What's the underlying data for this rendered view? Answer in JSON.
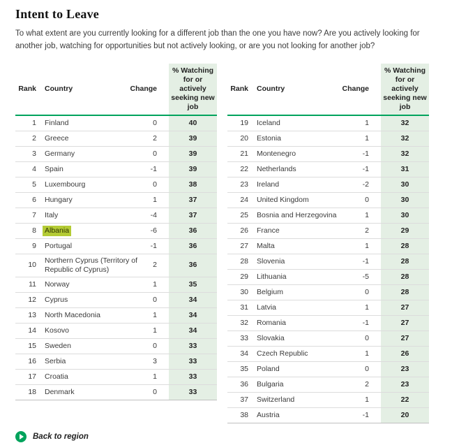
{
  "title": "Intent to Leave",
  "description": "To what extent are you currently looking for a different job than the one you have now? Are you actively looking for another job, watching for opportunities but not actively looking, or are you not looking for another job?",
  "columns": {
    "rank": "Rank",
    "country": "Country",
    "change": "Change",
    "pct": "% Watching for or actively seeking new job"
  },
  "colors": {
    "accent_green": "#00a35c",
    "pct_column_bg": "#e4efe4",
    "highlight": "#b4cb35"
  },
  "highlighted_country": "Albania",
  "chart_data": [
    {
      "type": "table",
      "columns": [
        "Rank",
        "Country",
        "Change",
        "% Watching for or actively seeking new job"
      ],
      "rows": [
        {
          "rank": "1",
          "country": "Finland",
          "change": "0",
          "pct": "40"
        },
        {
          "rank": "2",
          "country": "Greece",
          "change": "2",
          "pct": "39"
        },
        {
          "rank": "3",
          "country": "Germany",
          "change": "0",
          "pct": "39"
        },
        {
          "rank": "4",
          "country": "Spain",
          "change": "-1",
          "pct": "39"
        },
        {
          "rank": "5",
          "country": "Luxembourg",
          "change": "0",
          "pct": "38"
        },
        {
          "rank": "6",
          "country": "Hungary",
          "change": "1",
          "pct": "37"
        },
        {
          "rank": "7",
          "country": "Italy",
          "change": "-4",
          "pct": "37"
        },
        {
          "rank": "8",
          "country": "Albania",
          "change": "-6",
          "pct": "36",
          "highlight": true
        },
        {
          "rank": "9",
          "country": "Portugal",
          "change": "-1",
          "pct": "36"
        },
        {
          "rank": "10",
          "country": "Northern Cyprus (Territory of Republic of Cyprus)",
          "change": "2",
          "pct": "36"
        },
        {
          "rank": "11",
          "country": "Norway",
          "change": "1",
          "pct": "35"
        },
        {
          "rank": "12",
          "country": "Cyprus",
          "change": "0",
          "pct": "34"
        },
        {
          "rank": "13",
          "country": "North Macedonia",
          "change": "1",
          "pct": "34"
        },
        {
          "rank": "14",
          "country": "Kosovo",
          "change": "1",
          "pct": "34"
        },
        {
          "rank": "15",
          "country": "Sweden",
          "change": "0",
          "pct": "33"
        },
        {
          "rank": "16",
          "country": "Serbia",
          "change": "3",
          "pct": "33"
        },
        {
          "rank": "17",
          "country": "Croatia",
          "change": "1",
          "pct": "33"
        },
        {
          "rank": "18",
          "country": "Denmark",
          "change": "0",
          "pct": "33"
        }
      ]
    },
    {
      "type": "table",
      "columns": [
        "Rank",
        "Country",
        "Change",
        "% Watching for or actively seeking new job"
      ],
      "rows": [
        {
          "rank": "19",
          "country": "Iceland",
          "change": "1",
          "pct": "32"
        },
        {
          "rank": "20",
          "country": "Estonia",
          "change": "1",
          "pct": "32"
        },
        {
          "rank": "21",
          "country": "Montenegro",
          "change": "-1",
          "pct": "32"
        },
        {
          "rank": "22",
          "country": "Netherlands",
          "change": "-1",
          "pct": "31"
        },
        {
          "rank": "23",
          "country": "Ireland",
          "change": "-2",
          "pct": "30"
        },
        {
          "rank": "24",
          "country": "United Kingdom",
          "change": "0",
          "pct": "30"
        },
        {
          "rank": "25",
          "country": "Bosnia and Herzegovina",
          "change": "1",
          "pct": "30"
        },
        {
          "rank": "26",
          "country": "France",
          "change": "2",
          "pct": "29"
        },
        {
          "rank": "27",
          "country": "Malta",
          "change": "1",
          "pct": "28"
        },
        {
          "rank": "28",
          "country": "Slovenia",
          "change": "-1",
          "pct": "28"
        },
        {
          "rank": "29",
          "country": "Lithuania",
          "change": "-5",
          "pct": "28"
        },
        {
          "rank": "30",
          "country": "Belgium",
          "change": "0",
          "pct": "28"
        },
        {
          "rank": "31",
          "country": "Latvia",
          "change": "1",
          "pct": "27"
        },
        {
          "rank": "32",
          "country": "Romania",
          "change": "-1",
          "pct": "27"
        },
        {
          "rank": "33",
          "country": "Slovakia",
          "change": "0",
          "pct": "27"
        },
        {
          "rank": "34",
          "country": "Czech Republic",
          "change": "1",
          "pct": "26"
        },
        {
          "rank": "35",
          "country": "Poland",
          "change": "0",
          "pct": "23"
        },
        {
          "rank": "36",
          "country": "Bulgaria",
          "change": "2",
          "pct": "23"
        },
        {
          "rank": "37",
          "country": "Switzerland",
          "change": "1",
          "pct": "22"
        },
        {
          "rank": "38",
          "country": "Austria",
          "change": "-1",
          "pct": "20"
        }
      ]
    }
  ],
  "back_link": {
    "label": "Back to region"
  }
}
